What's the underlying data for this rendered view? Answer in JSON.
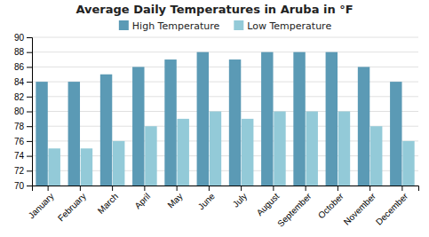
{
  "chart_data": {
    "type": "bar",
    "title": "Average Daily Temperatures in Aruba in °F",
    "categories": [
      "January",
      "February",
      "March",
      "April",
      "May",
      "June",
      "July",
      "August",
      "September",
      "October",
      "November",
      "December"
    ],
    "series": [
      {
        "name": "High Temperature",
        "color": "#5b9ab5",
        "values": [
          84,
          84,
          85,
          86,
          87,
          88,
          87,
          88,
          88,
          88,
          86,
          84
        ]
      },
      {
        "name": "Low Temperature",
        "color": "#93cad8",
        "values": [
          75,
          75,
          76,
          78,
          79,
          80,
          79,
          80,
          80,
          80,
          78,
          76
        ]
      }
    ],
    "ylim": [
      70,
      90
    ],
    "yticks": [
      70,
      72,
      74,
      76,
      78,
      80,
      82,
      84,
      86,
      88,
      90
    ],
    "grid": true,
    "legend": "top"
  }
}
